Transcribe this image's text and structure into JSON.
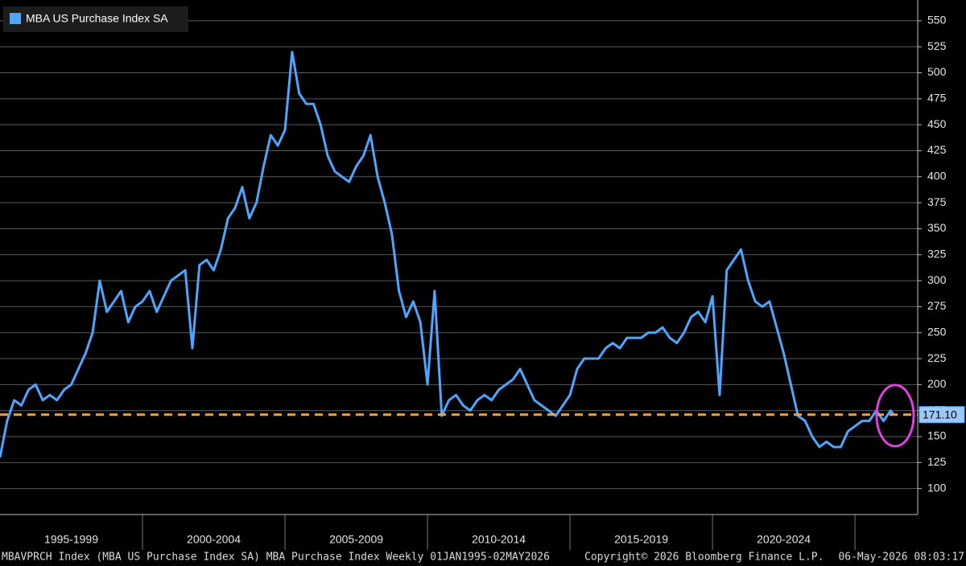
{
  "chart_data": {
    "type": "line",
    "title": "MBA US Purchase Index SA",
    "footer_left": "MBAVPRCH Index (MBA US Purchase Index SA) MBA Purchase Index Weekly 01JAN1995-02MAY2026",
    "footer_mid": "Copyright© 2026 Bloomberg Finance L.P.",
    "footer_right": "06-May-2026 08:03:17",
    "x": [
      1995,
      1995.25,
      1995.5,
      1995.75,
      1996,
      1996.25,
      1996.5,
      1996.75,
      1997,
      1997.25,
      1997.5,
      1997.75,
      1998,
      1998.25,
      1998.5,
      1998.75,
      1999,
      1999.25,
      1999.5,
      1999.75,
      2000,
      2000.25,
      2000.5,
      2000.75,
      2001,
      2001.25,
      2001.5,
      2001.75,
      2002,
      2002.25,
      2002.5,
      2002.75,
      2003,
      2003.25,
      2003.5,
      2003.75,
      2004,
      2004.25,
      2004.5,
      2004.75,
      2005,
      2005.25,
      2005.5,
      2005.75,
      2006,
      2006.25,
      2006.5,
      2006.75,
      2007,
      2007.25,
      2007.5,
      2007.75,
      2008,
      2008.25,
      2008.5,
      2008.75,
      2009,
      2009.25,
      2009.5,
      2009.75,
      2010,
      2010.25,
      2010.5,
      2010.75,
      2011,
      2011.25,
      2011.5,
      2011.75,
      2012,
      2012.25,
      2012.5,
      2012.75,
      2013,
      2013.25,
      2013.5,
      2013.75,
      2014,
      2014.25,
      2014.5,
      2014.75,
      2015,
      2015.25,
      2015.5,
      2015.75,
      2016,
      2016.25,
      2016.5,
      2016.75,
      2017,
      2017.25,
      2017.5,
      2017.75,
      2018,
      2018.25,
      2018.5,
      2018.75,
      2019,
      2019.25,
      2019.5,
      2019.75,
      2020,
      2020.25,
      2020.5,
      2020.75,
      2021,
      2021.25,
      2021.5,
      2021.75,
      2022,
      2022.25,
      2022.5,
      2022.75,
      2023,
      2023.25,
      2023.5,
      2023.75,
      2024,
      2024.25,
      2024.5,
      2024.75,
      2025,
      2025.25,
      2025.5,
      2025.75,
      2026,
      2026.25,
      2026.35
    ],
    "series": [
      {
        "name": "MBA US Purchase Index SA",
        "color": "#4da6ff",
        "values": [
          130,
          165,
          185,
          180,
          195,
          200,
          185,
          190,
          185,
          195,
          200,
          215,
          230,
          250,
          300,
          270,
          280,
          290,
          260,
          275,
          280,
          290,
          270,
          285,
          300,
          305,
          310,
          235,
          315,
          320,
          310,
          330,
          360,
          370,
          390,
          360,
          375,
          410,
          440,
          430,
          445,
          520,
          480,
          470,
          470,
          450,
          420,
          405,
          400,
          395,
          410,
          420,
          440,
          400,
          375,
          345,
          290,
          265,
          280,
          260,
          200,
          290,
          170,
          185,
          190,
          180,
          175,
          185,
          190,
          185,
          195,
          200,
          205,
          215,
          200,
          185,
          180,
          175,
          170,
          180,
          190,
          215,
          225,
          225,
          225,
          235,
          240,
          235,
          245,
          245,
          245,
          250,
          250,
          255,
          245,
          240,
          250,
          265,
          270,
          260,
          285,
          190,
          310,
          320,
          330,
          300,
          280,
          275,
          280,
          255,
          230,
          200,
          170,
          165,
          150,
          140,
          145,
          140,
          140,
          155,
          160,
          165,
          165,
          175,
          165,
          175,
          171.1
        ]
      }
    ],
    "reference_line": {
      "value": 171.1,
      "label": "171.10",
      "color": "#f5a040"
    },
    "xlim": [
      1995,
      2027.2
    ],
    "xticks": [
      {
        "value": 1995,
        "label": "1995-1999"
      },
      {
        "value": 2000,
        "label": "2000-2004"
      },
      {
        "value": 2005,
        "label": "2005-2009"
      },
      {
        "value": 2010,
        "label": "2010-2014"
      },
      {
        "value": 2015,
        "label": "2015-2019"
      },
      {
        "value": 2020,
        "label": "2020-2024"
      }
    ],
    "ylim": [
      75,
      570
    ],
    "yticks": [
      100,
      125,
      150,
      175,
      200,
      225,
      250,
      275,
      300,
      325,
      350,
      375,
      400,
      425,
      450,
      475,
      500,
      525,
      550
    ],
    "grid": true,
    "legend": "top-left"
  }
}
